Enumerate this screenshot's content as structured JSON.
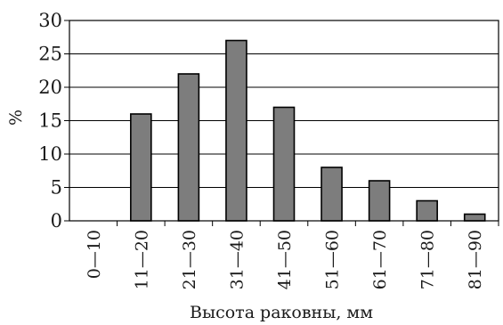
{
  "chart_data": {
    "type": "bar",
    "categories": [
      "0—10",
      "11—20",
      "21—30",
      "31—40",
      "41—50",
      "51—60",
      "61—70",
      "71—80",
      "81—90"
    ],
    "values": [
      0,
      16,
      22,
      27,
      17,
      8,
      6,
      3,
      1
    ],
    "title": "",
    "xlabel": "Высота раковны, мм",
    "ylabel": "%",
    "ylim": [
      0,
      30
    ],
    "yticks": [
      0,
      5,
      10,
      15,
      20,
      25,
      30
    ],
    "grid": true,
    "bar_color": "#7d7d7d"
  }
}
